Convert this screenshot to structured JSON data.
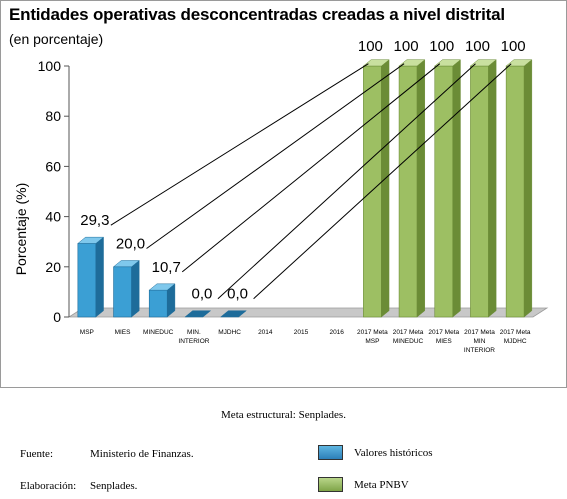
{
  "title": "Entidades operativas desconcentradas creadas a nivel distrital",
  "subtitle": "(en porcentaje)",
  "colors": {
    "historic_front": "#3b9fd4",
    "historic_side": "#1e6c9a",
    "historic_top": "#7fc8ec",
    "meta_front": "#9dbf63",
    "meta_side": "#6b8c36",
    "meta_top": "#c9e09f",
    "floor": "#c8c8c8"
  },
  "chart_data": {
    "type": "bar",
    "ylabel": "Porcentaje (%)",
    "ylim": [
      0,
      100
    ],
    "yticks": [
      0,
      20,
      40,
      60,
      80,
      100
    ],
    "categories": [
      [
        "MSP"
      ],
      [
        "MIES"
      ],
      [
        "MINEDUC"
      ],
      [
        "MIN.",
        "INTERIOR"
      ],
      [
        "MJDHC"
      ],
      [
        "2014"
      ],
      [
        "2015"
      ],
      [
        "2016"
      ],
      [
        "2017 Meta",
        "MSP"
      ],
      [
        "2017 Meta",
        "MINEDUC"
      ],
      [
        "2017 Meta",
        "MIES"
      ],
      [
        "2017 Meta",
        "MIN",
        "INTERIOR"
      ],
      [
        "2017 Meta",
        "MJDHC"
      ]
    ],
    "series": [
      {
        "name": "Valores históricos",
        "values": [
          29.3,
          20.0,
          10.7,
          0.0,
          0.0,
          null,
          null,
          null,
          null,
          null,
          null,
          null,
          null
        ]
      },
      {
        "name": "Meta PNBV",
        "values": [
          null,
          null,
          null,
          null,
          null,
          null,
          null,
          null,
          100,
          100,
          100,
          100,
          100
        ]
      }
    ],
    "data_labels": [
      "29,3",
      "20,0",
      "10,7",
      "0,0",
      "0,0",
      "",
      "",
      "",
      "100",
      "100",
      "100",
      "100",
      "100"
    ],
    "connectors": [
      [
        0,
        8
      ],
      [
        1,
        9
      ],
      [
        2,
        10
      ],
      [
        3,
        11
      ],
      [
        4,
        12
      ]
    ],
    "legend_position": "bottom-right"
  },
  "footer": {
    "meta_line": "Meta estructural: Senplades.",
    "fuente_label": "Fuente:",
    "fuente_value": "Ministerio de Finanzas.",
    "elaboracion_label": "Elaboración:",
    "elaboracion_value": "Senplades."
  },
  "legend": [
    {
      "label": "Valores históricos"
    },
    {
      "label": "Meta PNBV"
    }
  ]
}
